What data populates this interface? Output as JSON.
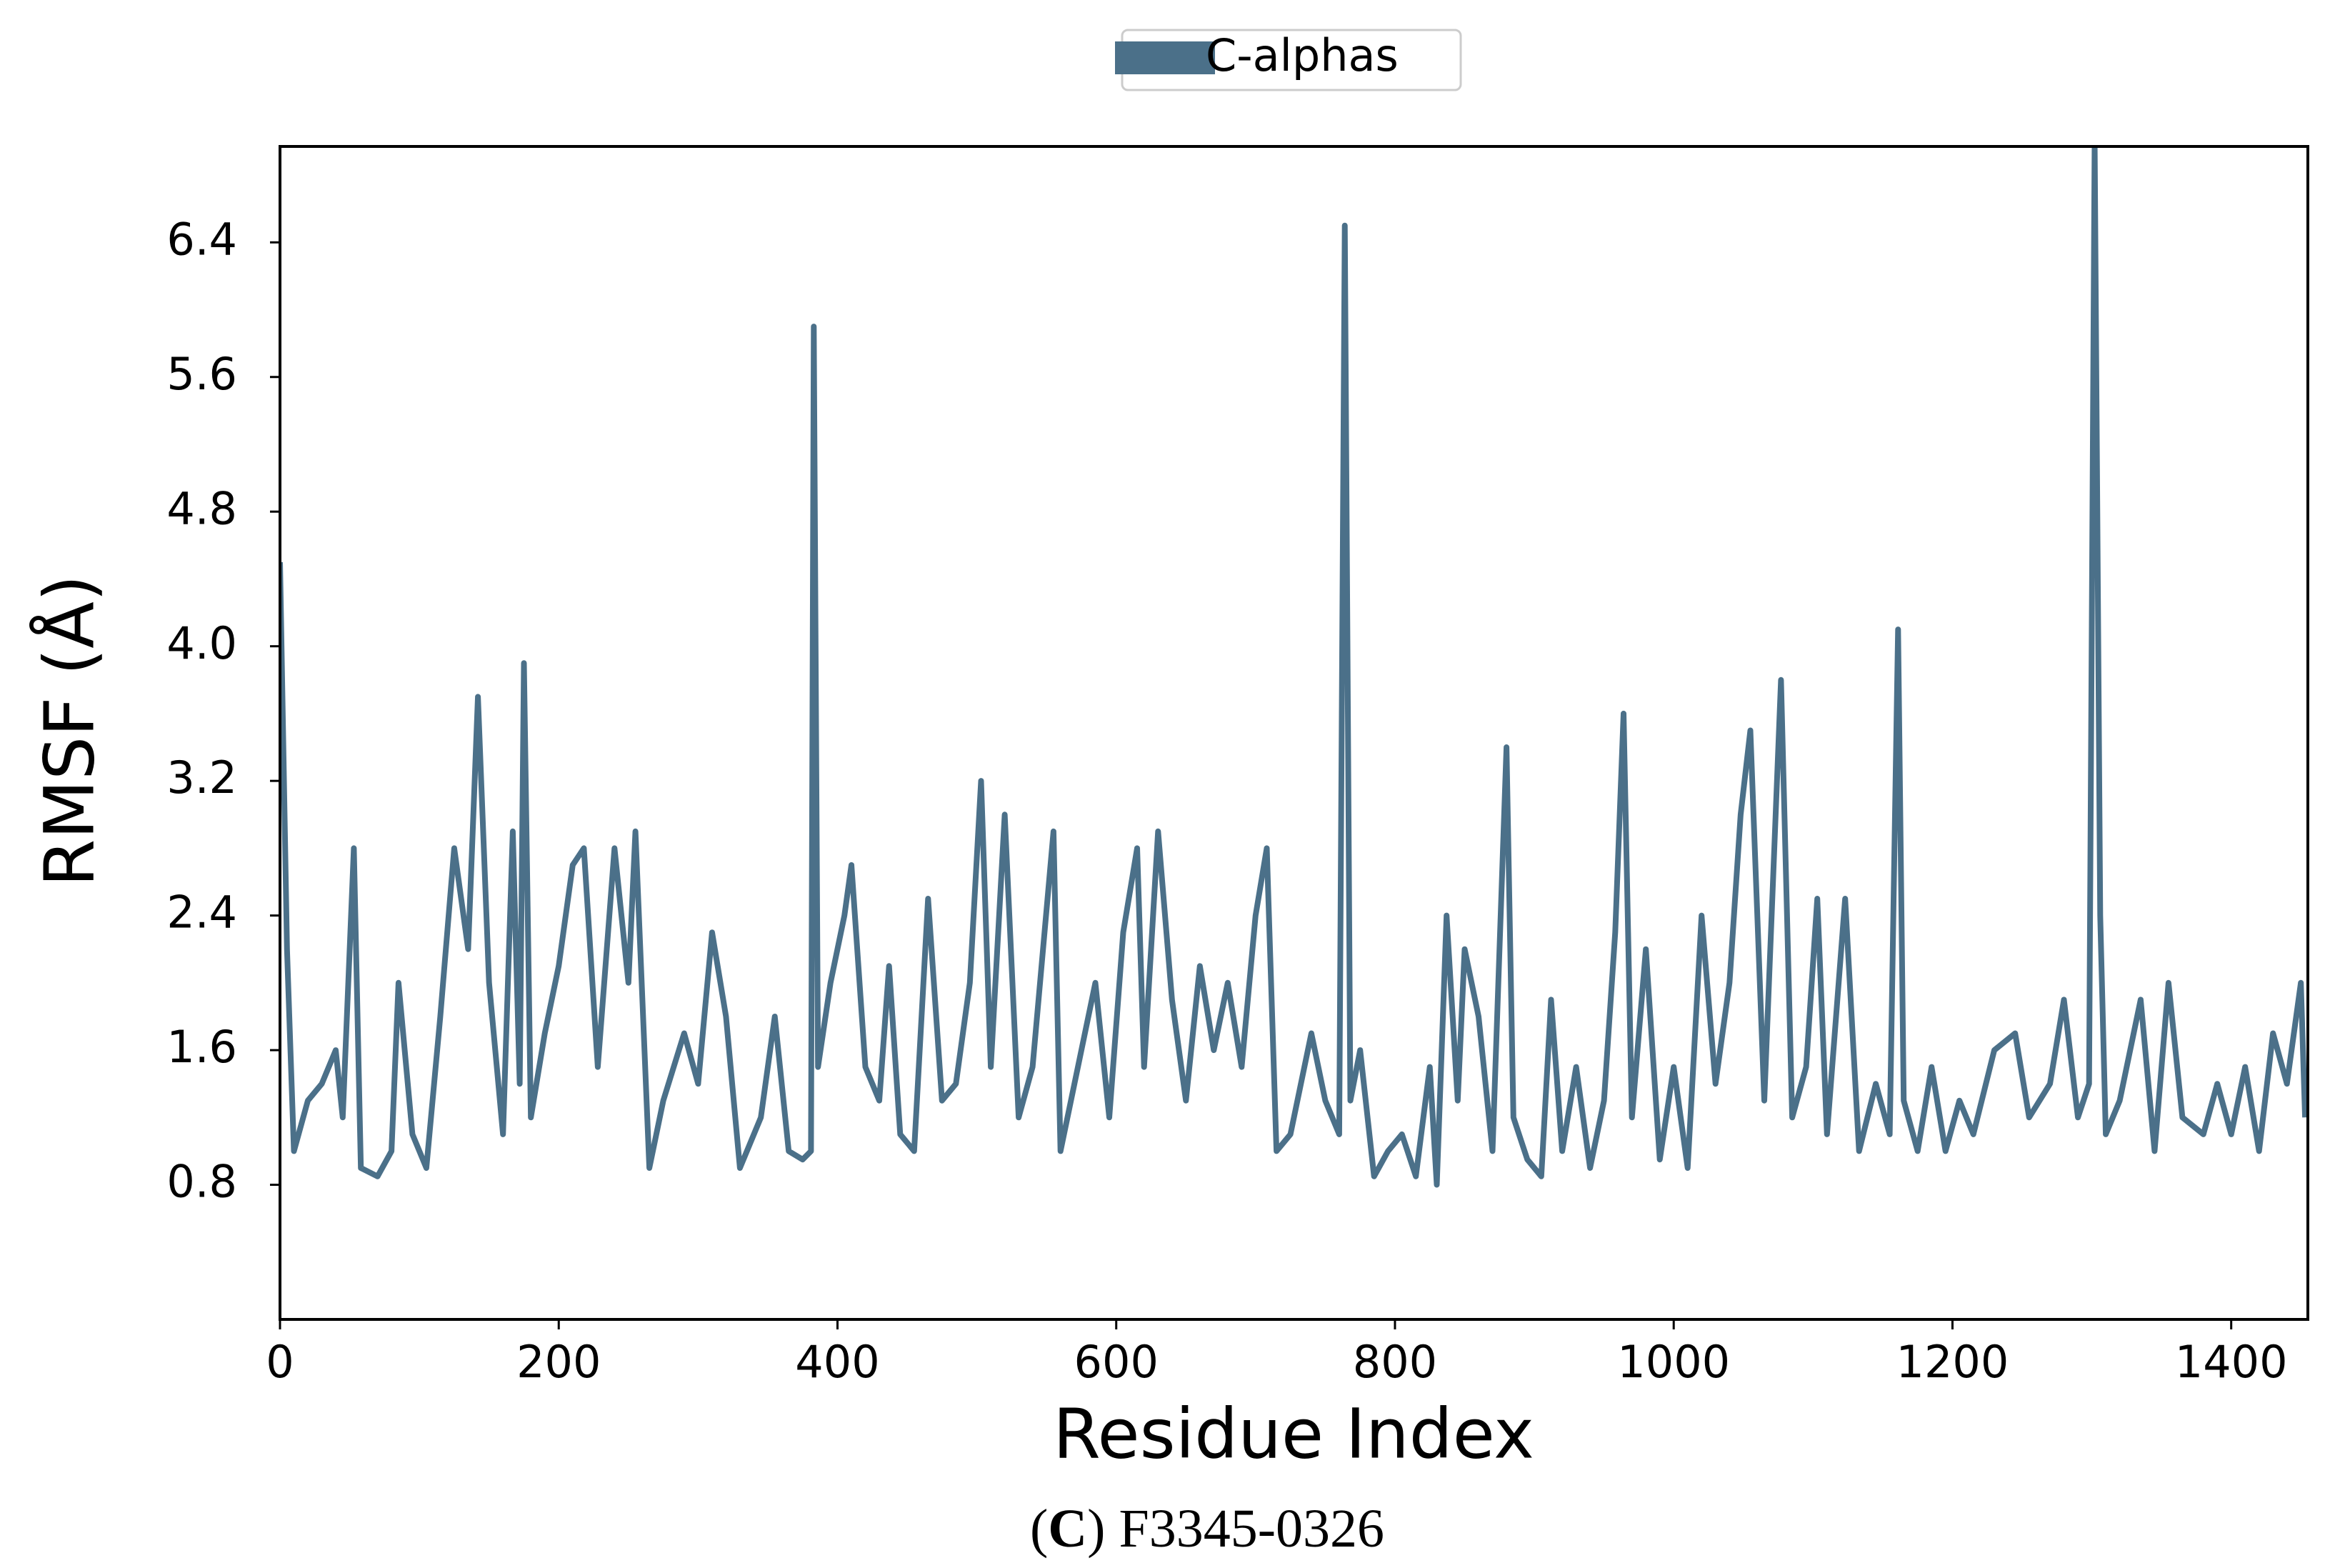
{
  "chart_data": {
    "type": "line",
    "x_label": "Residue Index",
    "y_label": "RMSF (Å)",
    "caption": [
      "(",
      "C",
      ") F3345-0326"
    ],
    "legend_position": "top-center",
    "grid": false,
    "xlim": [
      0,
      1455
    ],
    "ylim": [
      0,
      6.97
    ],
    "xticks": [
      0,
      200,
      400,
      600,
      800,
      1000,
      1200,
      1400
    ],
    "yticks": [
      0.8,
      1.6,
      2.4,
      3.2,
      {
        "value": 4,
        "label": "4.0"
      },
      4.8,
      5.6,
      6.4
    ],
    "x": [
      0,
      5,
      10,
      20,
      30,
      40,
      45,
      53,
      58,
      70,
      80,
      85,
      95,
      105,
      115,
      125,
      135,
      142,
      150,
      160,
      167,
      172,
      175,
      180,
      190,
      200,
      210,
      218,
      228,
      240,
      250,
      255,
      265,
      275,
      290,
      300,
      310,
      320,
      330,
      345,
      355,
      365,
      375,
      381,
      383,
      386,
      395,
      405,
      410,
      420,
      430,
      437,
      445,
      455,
      465,
      475,
      485,
      495,
      503,
      510,
      520,
      530,
      540,
      555,
      560,
      570,
      585,
      595,
      605,
      615,
      620,
      630,
      640,
      650,
      660,
      670,
      680,
      690,
      700,
      708,
      715,
      725,
      740,
      750,
      760,
      764,
      768,
      775,
      785,
      795,
      805,
      815,
      825,
      830,
      837,
      845,
      850,
      860,
      870,
      880,
      885,
      895,
      905,
      912,
      920,
      930,
      940,
      950,
      958,
      964,
      970,
      980,
      990,
      1000,
      1010,
      1020,
      1030,
      1040,
      1048,
      1055,
      1065,
      1077,
      1085,
      1095,
      1103,
      1110,
      1123,
      1133,
      1145,
      1155,
      1161,
      1165,
      1175,
      1185,
      1195,
      1205,
      1215,
      1230,
      1245,
      1255,
      1270,
      1280,
      1290,
      1298,
      1302,
      1306,
      1310,
      1320,
      1335,
      1345,
      1355,
      1365,
      1380,
      1390,
      1400,
      1410,
      1420,
      1430,
      1440,
      1450,
      1453
    ],
    "series": [
      {
        "name": "C-alphas",
        "color": "#4b7089",
        "values": [
          4.5,
          2.2,
          1.0,
          1.3,
          1.4,
          1.6,
          1.2,
          2.8,
          0.9,
          0.85,
          1.0,
          2.0,
          1.1,
          0.9,
          1.8,
          2.8,
          2.2,
          3.7,
          2.0,
          1.1,
          2.9,
          1.4,
          3.9,
          1.2,
          1.7,
          2.1,
          2.7,
          2.8,
          1.5,
          2.8,
          2.0,
          2.9,
          0.9,
          1.3,
          1.7,
          1.4,
          2.3,
          1.8,
          0.9,
          1.2,
          1.8,
          1.0,
          0.95,
          1.0,
          5.9,
          1.5,
          2.0,
          2.4,
          2.7,
          1.5,
          1.3,
          2.1,
          1.1,
          1.0,
          2.5,
          1.3,
          1.4,
          2.0,
          3.2,
          1.5,
          3.0,
          1.2,
          1.5,
          2.9,
          1.0,
          1.4,
          2.0,
          1.2,
          2.3,
          2.8,
          1.5,
          2.9,
          1.9,
          1.3,
          2.1,
          1.6,
          2.0,
          1.5,
          2.4,
          2.8,
          1.0,
          1.1,
          1.7,
          1.3,
          1.1,
          6.5,
          1.3,
          1.6,
          0.85,
          1.0,
          1.1,
          0.85,
          1.5,
          0.8,
          2.4,
          1.3,
          2.2,
          1.8,
          1.0,
          3.4,
          1.2,
          0.95,
          0.85,
          1.9,
          1.0,
          1.5,
          0.9,
          1.3,
          2.3,
          3.6,
          1.2,
          2.2,
          0.95,
          1.5,
          0.9,
          2.4,
          1.4,
          2.0,
          3.0,
          3.5,
          1.3,
          3.8,
          1.2,
          1.5,
          2.5,
          1.1,
          2.5,
          1.0,
          1.4,
          1.1,
          4.1,
          1.3,
          1.0,
          1.5,
          1.0,
          1.3,
          1.1,
          1.6,
          1.7,
          1.2,
          1.4,
          1.9,
          1.2,
          1.4,
          7.0,
          2.4,
          1.1,
          1.3,
          1.9,
          1.0,
          2.0,
          1.2,
          1.1,
          1.4,
          1.1,
          1.5,
          1.0,
          1.7,
          1.4,
          2.0,
          1.2
        ]
      }
    ]
  }
}
